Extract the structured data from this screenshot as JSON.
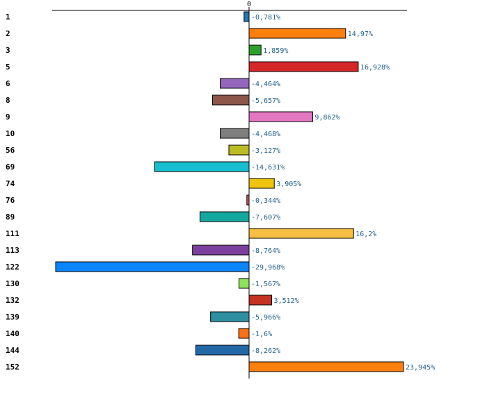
{
  "chart_data": {
    "type": "bar",
    "orientation": "horizontal",
    "value_unit": "%",
    "zero_tick_label": "0",
    "xlim": [
      -29.968,
      23.945
    ],
    "grid": false,
    "legend": "none",
    "categories": [
      "1",
      "2",
      "3",
      "5",
      "6",
      "8",
      "9",
      "10",
      "56",
      "69",
      "74",
      "76",
      "89",
      "111",
      "113",
      "122",
      "130",
      "132",
      "139",
      "140",
      "144",
      "152"
    ],
    "values": [
      -0.781,
      14.97,
      1.859,
      16.928,
      -4.464,
      -5.657,
      9.862,
      -4.468,
      -3.127,
      -14.631,
      3.905,
      -0.344,
      -7.607,
      16.2,
      -8.764,
      -29.968,
      -1.567,
      3.512,
      -5.966,
      -1.6,
      -8.262,
      23.945
    ],
    "value_labels": [
      "-0,781%",
      "14,97%",
      "1,859%",
      "16,928%",
      "-4,464%",
      "-5,657%",
      "9,862%",
      "-4,468%",
      "-3,127%",
      "-14,631%",
      "3,905%",
      "-0,344%",
      "-7,607%",
      "16,2%",
      "-8,764%",
      "-29,968%",
      "-1,567%",
      "3,512%",
      "-5,966%",
      "-1,6%",
      "-8,262%",
      "23,945%"
    ],
    "colors": [
      "#1f77b4",
      "#ff7f0e",
      "#2ca02c",
      "#d62728",
      "#9467bd",
      "#8c564b",
      "#e377c2",
      "#7f7f7f",
      "#bcbd22",
      "#17becf",
      "#f1c40f",
      "#e05a6e",
      "#13a89e",
      "#f6be42",
      "#7b3f9e",
      "#0a84ff",
      "#8ee35a",
      "#c43222",
      "#2e8fa0",
      "#ff7014",
      "#2369a8",
      "#ff7f0e"
    ]
  }
}
